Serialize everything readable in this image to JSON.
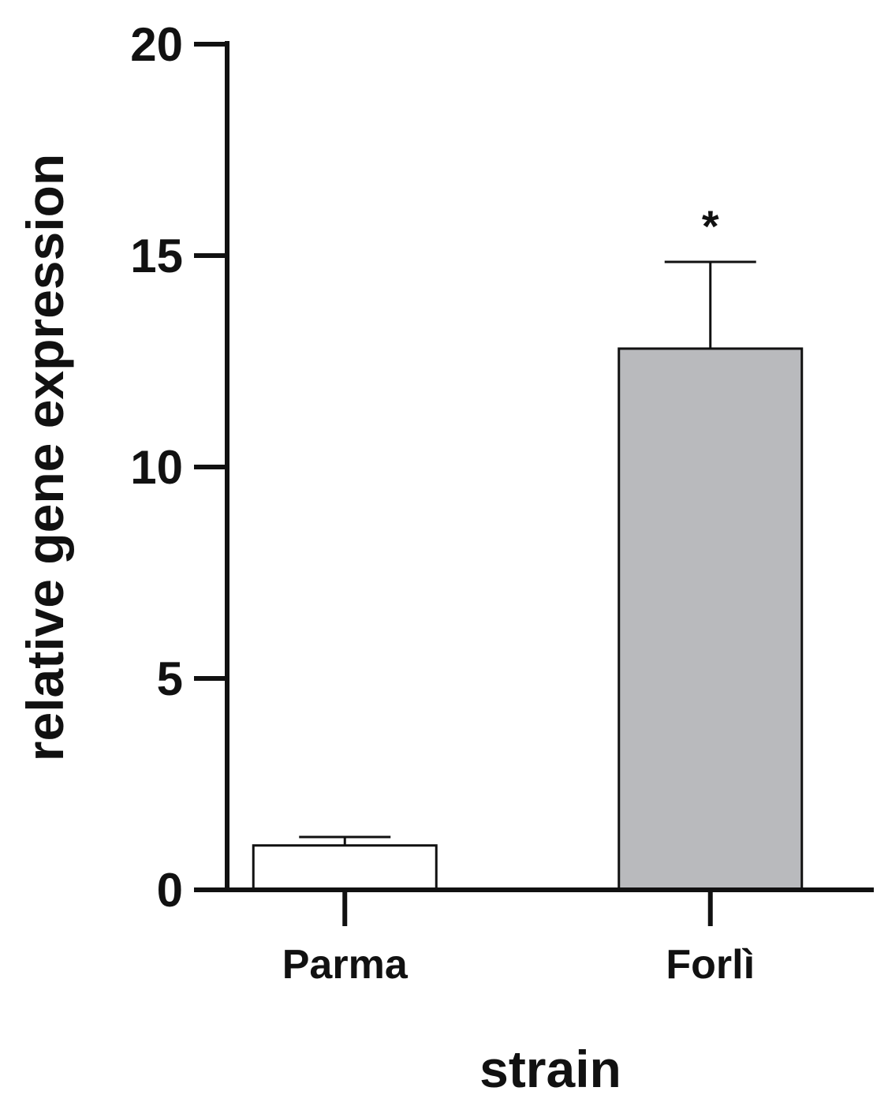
{
  "chart_data": {
    "type": "bar",
    "categories": [
      "Parma",
      "Forlì"
    ],
    "values": [
      1.05,
      12.8
    ],
    "error_bars": [
      0.2,
      2.05
    ],
    "bar_colors": [
      "#ffffff",
      "#b9babd"
    ],
    "annotations": [
      "",
      "*"
    ],
    "ylabel": "relative gene expression",
    "xlabel": "strain",
    "ylim": [
      0,
      20
    ],
    "yticks": [
      0,
      5,
      10,
      15,
      20
    ],
    "ytick_labels": [
      "0",
      "5",
      "10",
      "15",
      "20"
    ],
    "grid": false,
    "legend": "none"
  }
}
